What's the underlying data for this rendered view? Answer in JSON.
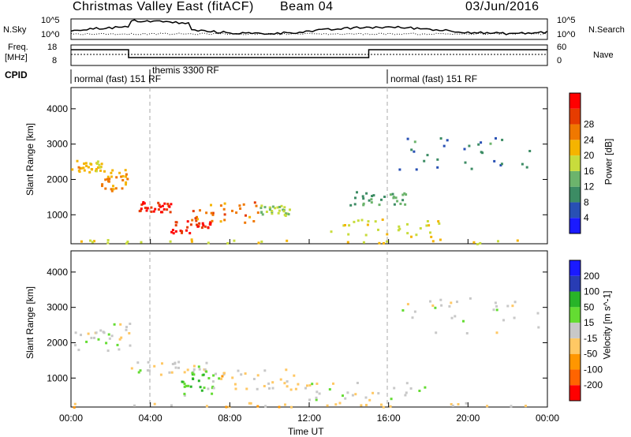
{
  "header": {
    "station": "Christmas Valley East (fitACF)",
    "beam": "Beam 04",
    "date": "03/Jun/2016"
  },
  "side_labels": {
    "nsky": "N.Sky",
    "freq_line1": "Freq.",
    "freq_line2": "[MHz]",
    "cpid": "CPID",
    "nsearch": "N.Search",
    "nave": "Nave"
  },
  "noise_panel": {
    "left_ticks": [
      "10^5",
      "10^0"
    ],
    "right_ticks": [
      "10^5",
      "10^0"
    ]
  },
  "freq_panel": {
    "left_ticks": [
      "18",
      "8"
    ],
    "right_ticks": [
      "60",
      "0"
    ]
  },
  "cpid_segments": [
    {
      "label": "normal (fast) 151 RF",
      "start_h": 0
    },
    {
      "label": "themis 3300 RF",
      "start_h": 4
    },
    {
      "label": "normal (fast) 151 RF",
      "start_h": 16
    }
  ],
  "colors": {
    "power_scale": [
      "#1a1aff",
      "#2850b4",
      "#3c8c64",
      "#6cb46c",
      "#c8dc3c",
      "#f5b400",
      "#f07800",
      "#e63c00",
      "#ff0000"
    ],
    "velocity_scale": [
      "#ff0000",
      "#ff6400",
      "#ff9600",
      "#ffc864",
      "#c8c8c8",
      "#64dc32",
      "#28b428",
      "#283cb4",
      "#1a1aff"
    ]
  },
  "chart_data": [
    {
      "type": "heatmap",
      "name": "power",
      "xlabel": "Time UT",
      "ylabel": "Slant Range [km]",
      "x_ticks": [
        "00:00",
        "04:00",
        "08:00",
        "12:00",
        "16:00",
        "20:00",
        "00:00"
      ],
      "xlim_hours": [
        0,
        24
      ],
      "y_ticks": [
        "1000",
        "2000",
        "3000",
        "4000"
      ],
      "ylim_km": [
        180,
        4600
      ],
      "colorbar_label": "Power [dB]",
      "colorbar_ticks": [
        "4",
        "8",
        "12",
        "16",
        "20",
        "24",
        "28"
      ],
      "colorbar_range": [
        0,
        30
      ],
      "regions": [
        {
          "t": [
            0.0,
            1.5
          ],
          "r": [
            2200,
            2600
          ],
          "value": 18
        },
        {
          "t": [
            1.5,
            3.0
          ],
          "r": [
            1700,
            2300
          ],
          "value": 20
        },
        {
          "t": [
            3.0,
            5.0
          ],
          "r": [
            1100,
            1400
          ],
          "value": 27
        },
        {
          "t": [
            5.0,
            7.0
          ],
          "r": [
            500,
            900
          ],
          "value": 26
        },
        {
          "t": [
            6.0,
            9.5
          ],
          "r": [
            800,
            1400
          ],
          "value": 22
        },
        {
          "t": [
            9.5,
            11.0
          ],
          "r": [
            1000,
            1300
          ],
          "value": 14
        },
        {
          "t": [
            13.0,
            18.5
          ],
          "r": [
            400,
            900
          ],
          "value": 15
        },
        {
          "t": [
            14.0,
            17.0
          ],
          "r": [
            1300,
            1700
          ],
          "value": 10
        },
        {
          "t": [
            16.5,
            23.5
          ],
          "r": [
            2300,
            3300
          ],
          "value": 8
        },
        {
          "t": [
            0.0,
            24.0
          ],
          "r": [
            200,
            330
          ],
          "value": 16
        }
      ]
    },
    {
      "type": "heatmap",
      "name": "velocity",
      "xlabel": "Time UT",
      "ylabel": "Slant Range [km]",
      "x_ticks": [
        "00:00",
        "04:00",
        "08:00",
        "12:00",
        "16:00",
        "20:00",
        "00:00"
      ],
      "xlim_hours": [
        0,
        24
      ],
      "y_ticks": [
        "1000",
        "2000",
        "3000",
        "4000"
      ],
      "ylim_km": [
        180,
        4600
      ],
      "colorbar_label": "Velocity [m s^-1]",
      "colorbar_ticks": [
        "-200",
        "-100",
        "-50",
        "-15",
        "15",
        "50",
        "100",
        "200"
      ],
      "colorbar_range": [
        -250,
        250
      ],
      "regions": [
        {
          "t": [
            0.0,
            3.0
          ],
          "r": [
            1800,
            2600
          ],
          "value": 0
        },
        {
          "t": [
            3.0,
            7.0
          ],
          "r": [
            1100,
            1500
          ],
          "value": 0
        },
        {
          "t": [
            5.5,
            7.5
          ],
          "r": [
            500,
            1200
          ],
          "value": 60
        },
        {
          "t": [
            7.5,
            11.5
          ],
          "r": [
            700,
            1300
          ],
          "value": -40
        },
        {
          "t": [
            11.0,
            18.0
          ],
          "r": [
            400,
            900
          ],
          "value": 0
        },
        {
          "t": [
            16.5,
            23.5
          ],
          "r": [
            2300,
            3300
          ],
          "value": 0
        },
        {
          "t": [
            0.0,
            24.0
          ],
          "r": [
            200,
            330
          ],
          "value": -60
        }
      ]
    }
  ]
}
